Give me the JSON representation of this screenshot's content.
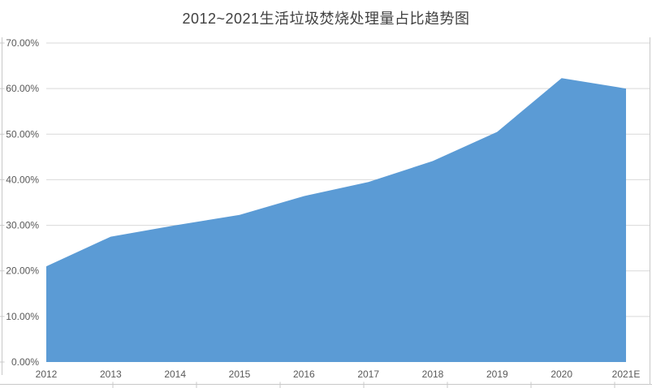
{
  "chart_data": {
    "type": "area",
    "title": "2012~2021生活垃圾焚烧处理量占比趋势图",
    "categories": [
      "2012",
      "2013",
      "2014",
      "2015",
      "2016",
      "2017",
      "2018",
      "2019",
      "2020",
      "2021E"
    ],
    "values": [
      21.0,
      27.5,
      30.0,
      32.3,
      36.4,
      39.5,
      44.1,
      50.5,
      62.3,
      60.0
    ],
    "unit": "%",
    "xlabel": "",
    "ylabel": "",
    "ylim": [
      0,
      70
    ],
    "ytick_step": 10,
    "ytick_labels": [
      "0.00%",
      "10.00%",
      "20.00%",
      "30.00%",
      "40.00%",
      "50.00%",
      "60.00%",
      "70.00%"
    ],
    "grid": true,
    "legend": "none",
    "colors": {
      "area_fill": "#5B9BD5",
      "gridline": "#D9D9D9",
      "axis_line": "#C8C8C8",
      "tick_label": "#595959",
      "title": "#404040"
    }
  }
}
